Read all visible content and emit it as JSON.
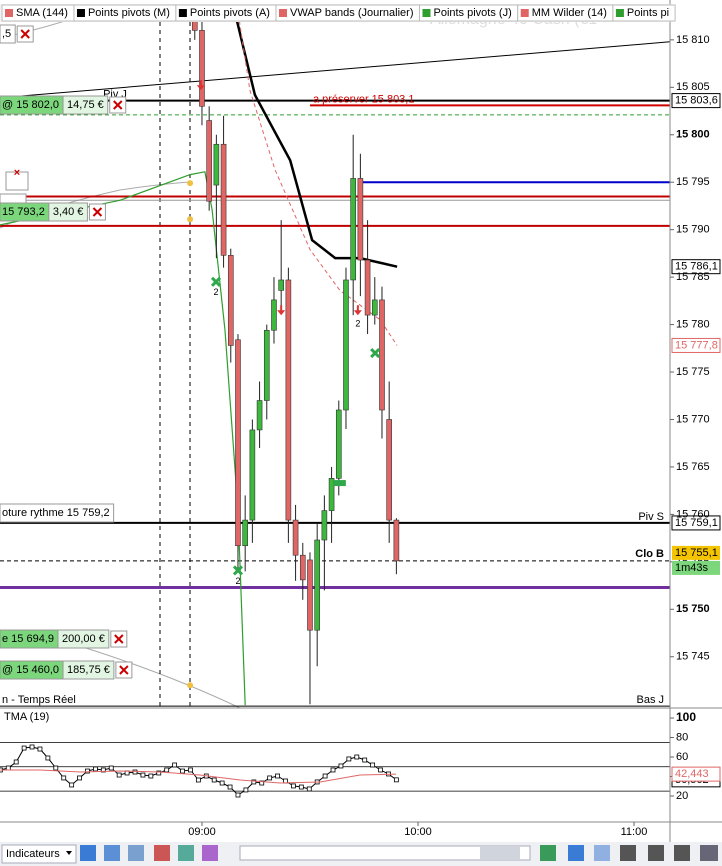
{
  "tabs": [
    {
      "label": "SMA (144)",
      "color": "#e06666"
    },
    {
      "label": "Points pivots (M)",
      "color": "#000000"
    },
    {
      "label": "Points pivots (A)",
      "color": "#000000"
    },
    {
      "label": "VWAP bands (Journalier)",
      "color": "#e06666"
    },
    {
      "label": "Points pivots (J)",
      "color": "#2e9e2e"
    },
    {
      "label": "MM Wilder (14)",
      "color": "#e06666"
    },
    {
      "label": "Points pi",
      "color": "#2e9e2e"
    }
  ],
  "orders": [
    {
      "text": ",5"
    },
    {
      "text": "@ 15 802,0",
      "amount": "14,75 €"
    },
    {
      "text": "15 793,2",
      "amount": "3,40 €"
    },
    {
      "text": "oture rythme 15 759,2"
    },
    {
      "text": "e 15 694,9",
      "amount": "200,00 €"
    },
    {
      "text": "@ 15 460,0",
      "amount": "185,75 €"
    }
  ],
  "status_text": "n - Temps Réel",
  "toolbar": {
    "indicators_button": "Indicateurs"
  },
  "chart_data": [
    {
      "type": "candlestick",
      "watermark": "Allemagne 40 Cash (€1",
      "xlim": [
        483.9,
        670
      ],
      "xticks": [
        {
          "value": 540,
          "label": "09:00"
        },
        {
          "value": 600,
          "label": "10:00"
        },
        {
          "value": 660,
          "label": "11:00"
        }
      ],
      "ylim": [
        15739.6,
        15814.2
      ],
      "yticks": [
        {
          "value": 15810,
          "label": "15 810"
        },
        {
          "value": 15805,
          "label": "15 805"
        },
        {
          "value": 15800,
          "label": "15 800"
        },
        {
          "value": 15795,
          "label": "15 795"
        },
        {
          "value": 15790,
          "label": "15 790"
        },
        {
          "value": 15785,
          "label": "15 785"
        },
        {
          "value": 15780,
          "label": "15 780"
        },
        {
          "value": 15775,
          "label": "15 775"
        },
        {
          "value": 15770,
          "label": "15 770"
        },
        {
          "value": 15765,
          "label": "15 765"
        },
        {
          "value": 15760,
          "label": "15 760"
        },
        {
          "value": 15755,
          "label": "15 755"
        },
        {
          "value": 15750,
          "label": "15 750"
        },
        {
          "value": 15745,
          "label": "15 745"
        }
      ],
      "up_color": "#3db83d",
      "down_color": "#e06666",
      "candles": {
        "x": [
          538,
          540,
          542,
          544,
          546,
          548,
          550,
          552,
          554,
          556,
          558,
          560,
          562,
          564,
          566,
          568,
          570,
          572,
          574,
          576,
          578,
          580,
          582,
          584,
          586,
          588,
          590,
          592,
          594
        ],
        "open": [
          15812,
          15811,
          15801.5,
          15794.7,
          15799,
          15787.3,
          15778.4,
          15756.7,
          15759.4,
          15768.9,
          15772,
          15779.4,
          15783.6,
          15784.7,
          15759.4,
          15755.7,
          15755.2,
          15747.8,
          15757.3,
          15760.4,
          15763.8,
          15771,
          15784.7,
          15795.4,
          15786.8,
          15781,
          15782.6,
          15770,
          15759.4
        ],
        "high": [
          15814,
          15812,
          15803,
          15800,
          15802,
          15788,
          15779,
          15762,
          15770,
          15774,
          15780,
          15785,
          15791,
          15786,
          15761,
          15757,
          15756,
          15759,
          15762,
          15765,
          15772,
          15786,
          15800,
          15798,
          15791,
          15785,
          15784,
          15774,
          15759.6
        ],
        "low": [
          15810,
          15801,
          15792,
          15787,
          15786,
          15776,
          15754,
          15754,
          15757,
          15767,
          15770,
          15778,
          15782,
          15757,
          15753,
          15751,
          15740,
          15744,
          15752,
          15757,
          15762,
          15769,
          15781,
          15783,
          15779,
          15780,
          15768,
          15757,
          15753.7
        ],
        "close": [
          15811,
          15803,
          15793,
          15799,
          15787.3,
          15777.8,
          15756.7,
          15759.4,
          15768.9,
          15772,
          15779.4,
          15782.6,
          15784.7,
          15759.4,
          15755.7,
          15753.1,
          15747.8,
          15757.3,
          15760.4,
          15763.8,
          15771,
          15784.7,
          15795.4,
          15786.8,
          15781,
          15782.6,
          15771,
          15759.4,
          15755.1
        ]
      },
      "overlays": [
        {
          "color": "#000000",
          "width": 2.5,
          "x": [
            548.3,
            554.7,
            564.5,
            570.6,
            577,
            583.9,
            594.2
          ],
          "values": [
            15814.2,
            15804.2,
            15797.3,
            15788.9,
            15787,
            15787,
            15786.1
          ],
          "last_label": "15 786,1"
        },
        {
          "color": "#000000",
          "width": 1,
          "x": [
            483.9,
            670
          ],
          "values": [
            15803.9,
            15809.8
          ]
        },
        {
          "color": "#2e9e2e",
          "width": 1.2,
          "x": [
            483.9,
            517.2,
            536.7,
            540.8,
            542.8,
            546.4,
            550,
            552
          ],
          "values": [
            15790.5,
            15793.1,
            15795.8,
            15796.1,
            15792.1,
            15779.4,
            15760.4,
            15739.9
          ]
        },
        {
          "color": "#e06666",
          "width": 1,
          "dash": true,
          "x": [
            549.5,
            553.3,
            560.3,
            570,
            578.3,
            589.5,
            594.2
          ],
          "values": [
            15814.2,
            15804.7,
            15796.3,
            15787.9,
            15783.6,
            15780.5,
            15777.8
          ],
          "last_label": "15 777,8"
        }
      ],
      "levels": [
        {
          "value": 15803.6,
          "color": "#000000",
          "width": 2,
          "from": 511.7,
          "name": "Piv J",
          "price_label": "15 803,6"
        },
        {
          "value": 15803.1,
          "color": "#d00000",
          "width": 2,
          "from": 570,
          "name": "a préserver 15 803,1"
        },
        {
          "value": 15802.1,
          "color": "#2e9e2e",
          "width": 1,
          "dash": true
        },
        {
          "value": 15795,
          "color": "#0000cc",
          "width": 2,
          "from": 583.9
        },
        {
          "value": 15793.5,
          "color": "#c00000",
          "width": 2
        },
        {
          "value": 15793.1,
          "color": "#999999",
          "width": 1
        },
        {
          "value": 15790.4,
          "color": "#c00000",
          "width": 2
        },
        {
          "value": 15759.1,
          "color": "#000000",
          "width": 2,
          "name": "Piv S",
          "price_label": "15 759,1"
        },
        {
          "value": 15752.3,
          "color": "#7030a0",
          "width": 3
        },
        {
          "value": 15739.8,
          "color": "#000000",
          "width": 1,
          "name": "Bas J"
        }
      ],
      "current": {
        "value": 15755.1,
        "label": "15 755,1",
        "timer": "1m43s",
        "name": "Clo B"
      },
      "signals": [
        {
          "kind": "arrow",
          "x": 539.7,
          "price": 15804.9
        },
        {
          "kind": "cross",
          "x": 543.9,
          "price": 15784.5,
          "label": "2"
        },
        {
          "kind": "cross",
          "x": 550,
          "price": 15754.1,
          "label": "2"
        },
        {
          "kind": "arrow",
          "x": 562,
          "price": 15781.2
        },
        {
          "kind": "flag",
          "x": 578.3,
          "price": 15763.3
        },
        {
          "kind": "arrow",
          "x": 583.3,
          "price": 15781.2,
          "label": "2"
        },
        {
          "kind": "cross",
          "x": 588.1,
          "price": 15777
        }
      ],
      "dots": {
        "color": "#f0c040",
        "x": [
          536.7,
          536.7,
          536.7
        ],
        "values": [
          15794.9,
          15791.1,
          15742
        ]
      }
    },
    {
      "type": "line",
      "title": "TMA (19)",
      "ylim": [
        -6.7,
        110.3
      ],
      "yticks": [
        100,
        80,
        60,
        40,
        20
      ],
      "levels": [
        75,
        50,
        25
      ],
      "series": [
        {
          "color": "#000000",
          "markers": true,
          "last_label": "36,562",
          "x": [
            484,
            486.2,
            488.4,
            490.6,
            492.8,
            495,
            497.2,
            499.4,
            501.6,
            503.8,
            506,
            508.2,
            510.4,
            512.6,
            514.8,
            517,
            519.2,
            521.4,
            523.6,
            525.8,
            528,
            530.2,
            532.4,
            534.6,
            536.8,
            539,
            541.2,
            543.4,
            545.6,
            547.8,
            550,
            552.2,
            554.4,
            556.6,
            558.8,
            561,
            563.2,
            565.4,
            567.6,
            569.8,
            572,
            574.2,
            576.4,
            578.6,
            580.8,
            583,
            585.2,
            587.4,
            589.6,
            591.8,
            594
          ],
          "values": [
            46.7,
            48.7,
            54.9,
            69.2,
            70.3,
            68.2,
            59,
            48.7,
            38.5,
            31.3,
            38.5,
            45.6,
            47.7,
            46.7,
            48.7,
            41.5,
            43.6,
            44.6,
            41.5,
            40.5,
            43.6,
            46.7,
            51.8,
            45.6,
            46.7,
            36.4,
            40.5,
            36.4,
            33.3,
            29.2,
            21,
            26.2,
            34.4,
            33.3,
            38.5,
            40.5,
            35.4,
            30.3,
            29.2,
            27.2,
            34.4,
            40.5,
            46.7,
            50.8,
            58,
            60,
            56.9,
            51.8,
            46.7,
            42.6,
            36.562
          ]
        },
        {
          "color": "#e06666",
          "markers": false,
          "last_label": "42,443",
          "x": [
            484,
            495.1,
            506.2,
            517.3,
            528.4,
            539.4,
            550.6,
            561.7,
            572.8,
            583.9,
            593.9
          ],
          "values": [
            46.7,
            46.7,
            44.6,
            45.6,
            44.6,
            41.5,
            36.4,
            33.3,
            34.4,
            41.5,
            42.443
          ]
        }
      ]
    }
  ]
}
